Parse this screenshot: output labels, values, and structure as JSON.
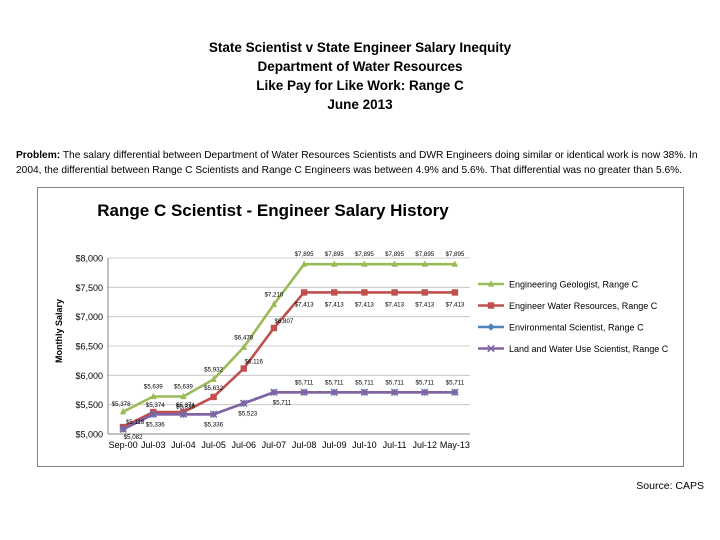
{
  "header": {
    "line1": "State Scientist v State Engineer Salary Inequity",
    "line2": "Department of Water Resources",
    "line3": "Like Pay for Like Work: Range C",
    "line4": "June 2013"
  },
  "problem": {
    "label": "Problem:",
    "text": "The salary differential between Department of Water Resources Scientists and DWR Engineers doing similar or identical work is now 38%.  In 2004, the differential between Range C Scientists and Range C Engineers was between 4.9% and 5.6%. That differential was no greater than 5.6%."
  },
  "source": "Source:  CAPS",
  "colors": {
    "geologist": "#9bbb59",
    "engineer": "#c0504d",
    "env_scientist": "#4f81bd",
    "land_water": "#8064a2",
    "grid": "#bfbfbf"
  },
  "chart_data": {
    "type": "line",
    "title": "Range C Scientist - Engineer Salary History",
    "xlabel": "",
    "ylabel": "Monthly Salary",
    "categories": [
      "Sep-00",
      "Jul-03",
      "Jul-04",
      "Jul-05",
      "Jul-06",
      "Jul-07",
      "Jul-08",
      "Jul-09",
      "Jul-10",
      "Jul-11",
      "Jul-12",
      "May-13"
    ],
    "ylim": [
      5000,
      8000
    ],
    "yticks": [
      "$5,000",
      "$5,500",
      "$6,000",
      "$6,500",
      "$7,000",
      "$7,500",
      "$8,000"
    ],
    "grid": true,
    "legend_position": "right",
    "series": [
      {
        "name": "Engineering Geologist, Range C",
        "marker": "triangle",
        "values": [
          5378,
          5639,
          5639,
          5932,
          6478,
          7210,
          7895,
          7895,
          7895,
          7895,
          7895,
          7895
        ],
        "labels": [
          "$5,378",
          "$5,639",
          "$5,639",
          "$5,932",
          "$6,478",
          "$7,210",
          "$7,895",
          "$7,895",
          "$7,895",
          "$7,895",
          "$7,895",
          "$7,895"
        ]
      },
      {
        "name": "Engineer Water Resources, Range C",
        "marker": "square",
        "values": [
          5118,
          5374,
          5374,
          5632,
          6116,
          6807,
          7413,
          7413,
          7413,
          7413,
          7413,
          7413
        ],
        "labels": [
          "$5,118",
          "$5,374",
          "$5,374",
          "$5,632",
          "$6,116",
          "$6,807",
          "$7,413",
          "$7,413",
          "$7,413",
          "$7,413",
          "$7,413",
          "$7,413"
        ]
      },
      {
        "name": "Environmental Scientist, Range C",
        "marker": "diamond",
        "values": [
          5082,
          5336,
          5336,
          5336,
          5523,
          5711,
          5711,
          5711,
          5711,
          5711,
          5711,
          5711
        ],
        "labels": []
      },
      {
        "name": "Land and Water Use Scientist, Range C",
        "marker": "x",
        "values": [
          5082,
          5336,
          5336,
          5336,
          5523,
          5711,
          5711,
          5711,
          5711,
          5711,
          5711,
          5711
        ],
        "labels": [
          "$5,082",
          "$5,336",
          "$5,336",
          "$5,336",
          "$5,523",
          "$5,711",
          "$5,711",
          "$5,711",
          "$5,711",
          "$5,711",
          "$5,711",
          "$5,711"
        ]
      }
    ]
  }
}
